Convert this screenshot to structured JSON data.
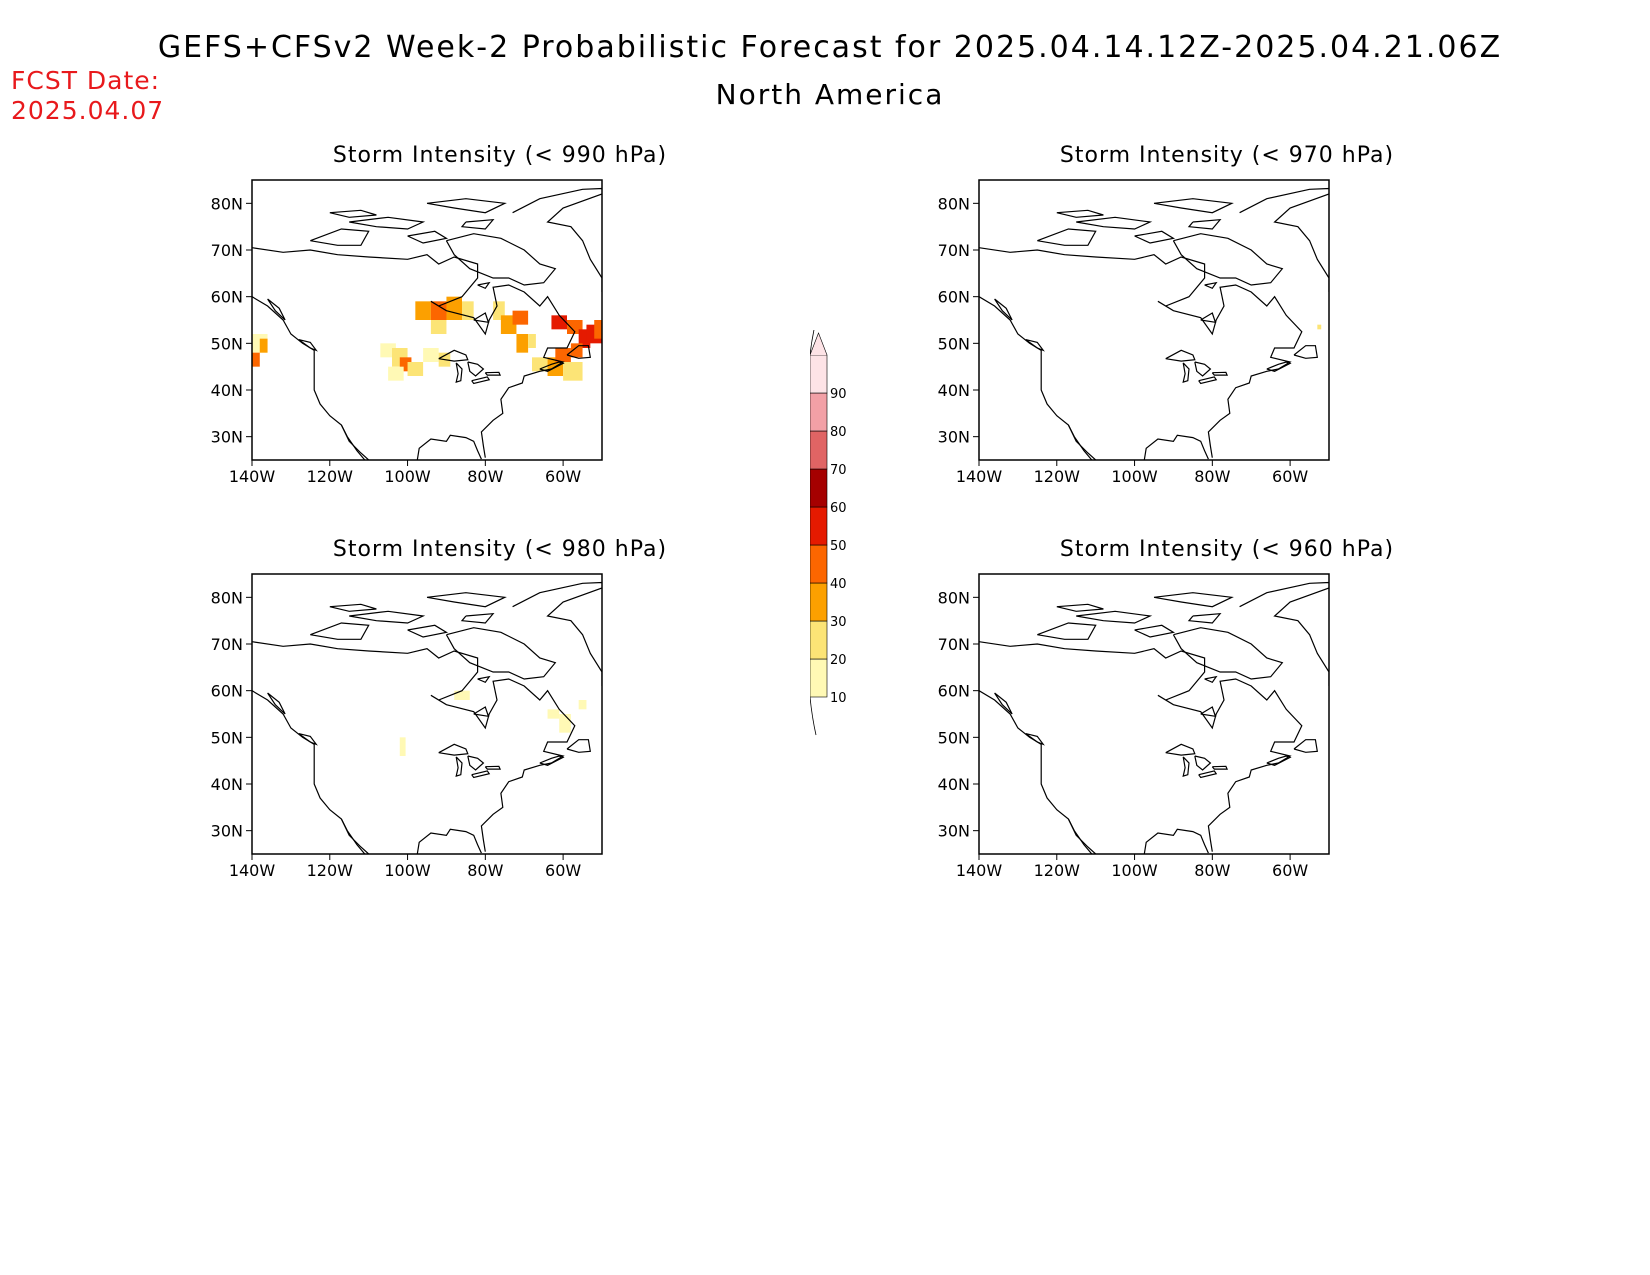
{
  "header": {
    "title": "GEFS+CFSv2 Week-2 Probabilistic Forecast for 2025.04.14.12Z-2025.04.21.06Z",
    "region": "North America",
    "fcst_label": "FCST Date:",
    "fcst_date": "2025.04.07"
  },
  "panels": [
    {
      "title": "Storm Intensity (< 990 hPa)"
    },
    {
      "title": "Storm Intensity (< 970 hPa)"
    },
    {
      "title": "Storm Intensity (< 980 hPa)"
    },
    {
      "title": "Storm Intensity (< 960 hPa)"
    }
  ],
  "axes": {
    "lat_labels": [
      "80N",
      "70N",
      "60N",
      "50N",
      "40N",
      "30N"
    ],
    "lon_labels": [
      "140W",
      "120W",
      "100W",
      "80W",
      "60W"
    ]
  },
  "colorbar": {
    "levels": [
      "10",
      "20",
      "30",
      "40",
      "50",
      "60",
      "70",
      "80",
      "90"
    ],
    "colors": [
      "#fff9b5",
      "#fce476",
      "#fca000",
      "#fc6600",
      "#e51a00",
      "#a50000",
      "#e06464",
      "#f2a0a6",
      "#fde3e6"
    ]
  }
}
